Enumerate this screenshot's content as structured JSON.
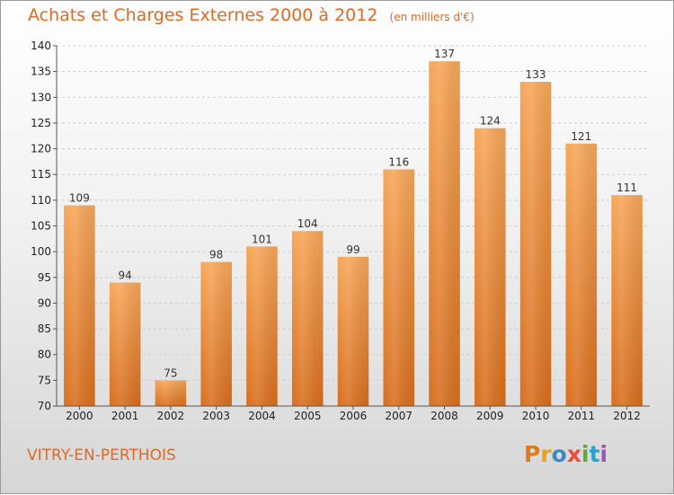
{
  "title": "Achats et Charges Externes 2000 à 2012",
  "subtitle": "(en milliers d'€)",
  "place": "VITRY-EN-PERTHOIS",
  "logo": [
    "P",
    "r",
    "o",
    "x",
    "i",
    "t",
    "i"
  ],
  "colors": {
    "bar_top": "#f6a75a",
    "bar_bottom": "#d86e1e",
    "title": "#e06a24"
  },
  "chart_data": {
    "type": "bar",
    "title": "Achats et Charges Externes 2000 à 2012",
    "subtitle": "(en milliers d'€)",
    "categories": [
      "2000",
      "2001",
      "2002",
      "2003",
      "2004",
      "2005",
      "2006",
      "2007",
      "2008",
      "2009",
      "2010",
      "2011",
      "2012"
    ],
    "values": [
      109,
      94,
      75,
      98,
      101,
      104,
      99,
      116,
      137,
      124,
      133,
      121,
      111
    ],
    "ylim": [
      70,
      140
    ],
    "yticks": [
      70,
      75,
      80,
      85,
      90,
      95,
      100,
      105,
      110,
      115,
      120,
      125,
      130,
      135,
      140
    ],
    "grid": true
  }
}
